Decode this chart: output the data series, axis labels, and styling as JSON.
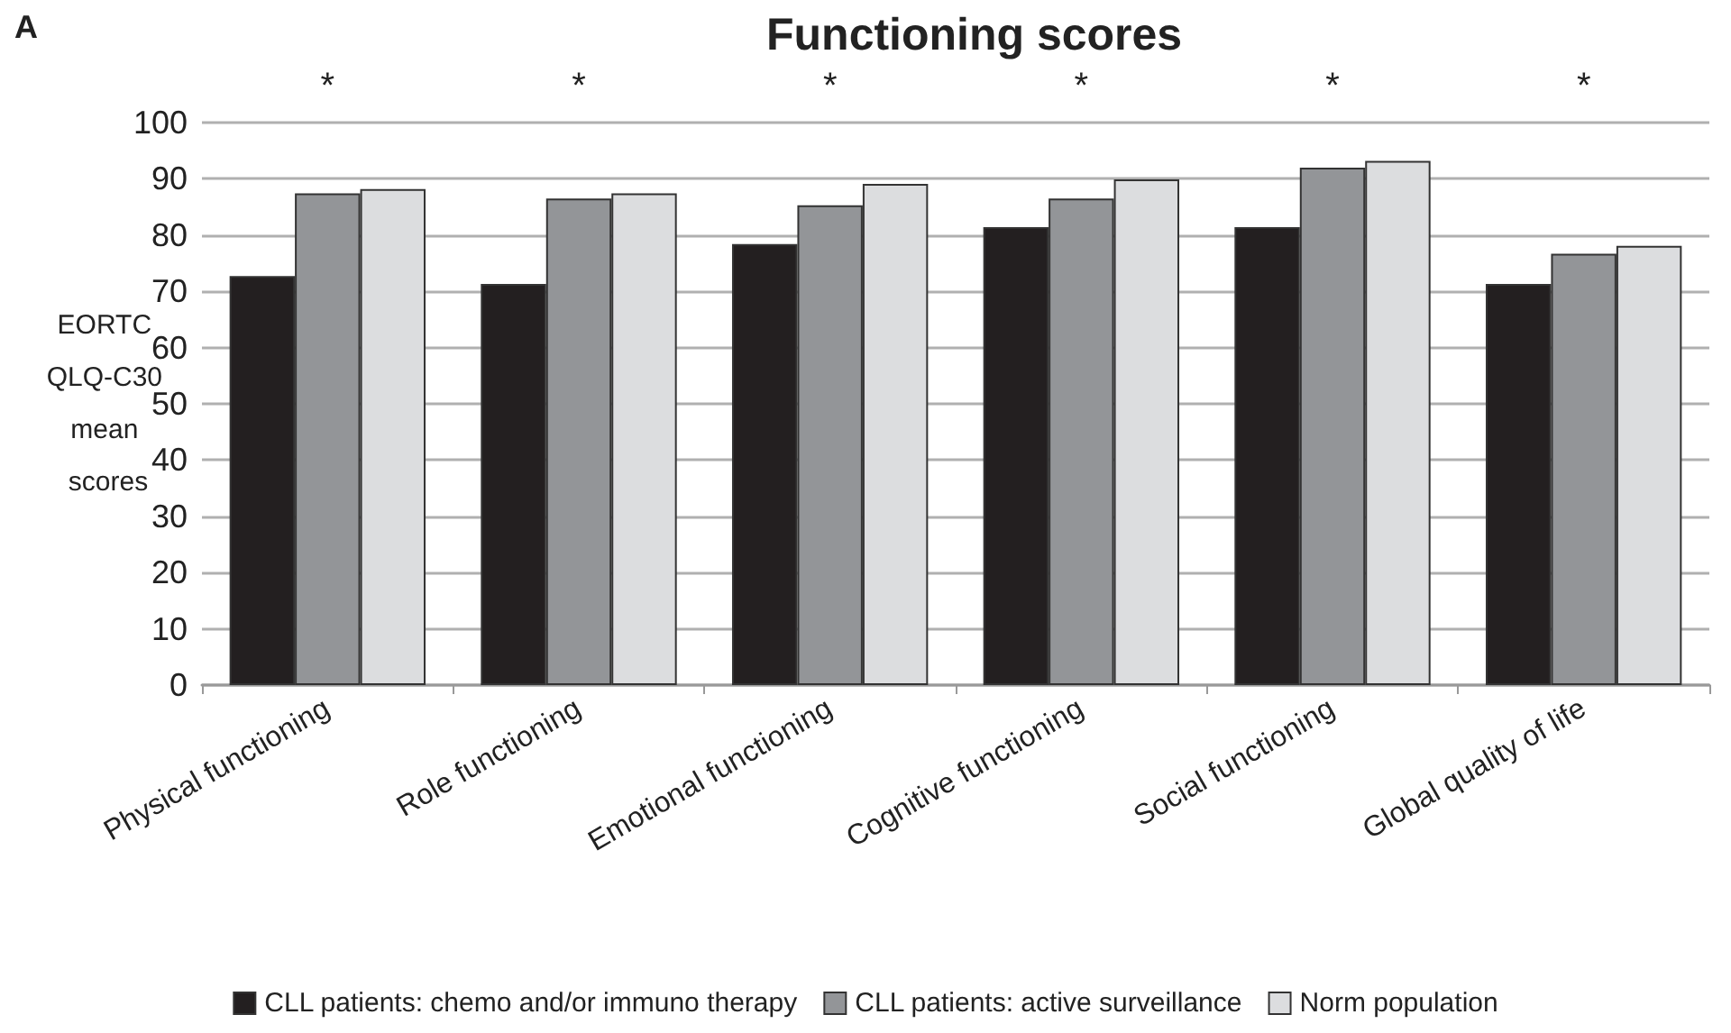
{
  "chart_data": {
    "type": "bar",
    "title": "Functioning scores",
    "ylabel": "EORTC QLQ-C30 mean scores",
    "categories": [
      "Physical functioning",
      "Role functioning",
      "Emotional functioning",
      "Cognitive functioning",
      "Social functioning",
      "Global quality of life"
    ],
    "series": [
      {
        "name": "CLL patients: chemo and/or immuno therapy",
        "color": "#231f20",
        "values": [
          72.7,
          71.3,
          78.4,
          81.4,
          81.4,
          71.3
        ]
      },
      {
        "name": "CLL patients: active surveillance",
        "color": "#939598",
        "values": [
          87.4,
          86.5,
          85.3,
          86.5,
          92,
          76.7
        ]
      },
      {
        "name": "Norm population",
        "color": "#dcdddf",
        "values": [
          88.2,
          87.4,
          89.1,
          89.9,
          93.2,
          78.1
        ]
      }
    ],
    "ylim": [
      0,
      100
    ],
    "yticks": [
      0,
      10,
      20,
      30,
      40,
      50,
      60,
      70,
      80,
      90,
      100
    ],
    "grid": "y",
    "legend": "bottom",
    "annotations": [
      "A",
      "*",
      "*",
      "*",
      "*",
      "*",
      "*"
    ]
  }
}
